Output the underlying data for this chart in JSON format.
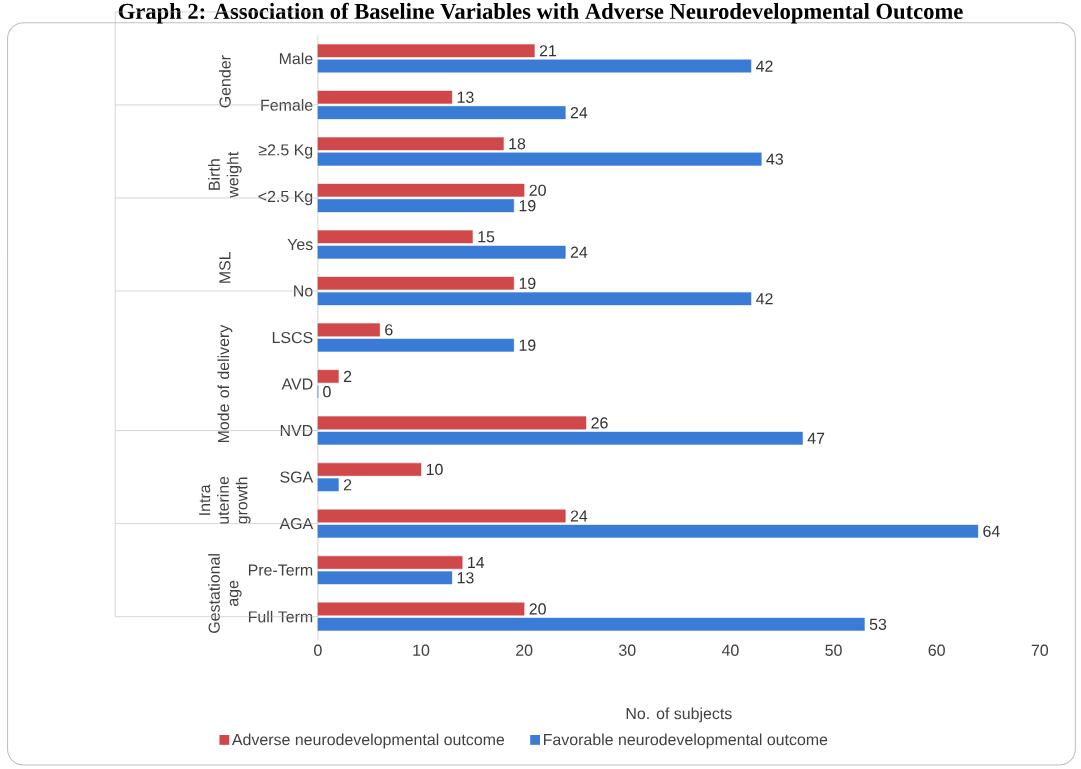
{
  "chart_data": {
    "type": "bar",
    "orientation": "horizontal",
    "title": "Graph 2: Association of Baseline Variables with Adverse Neurodevelopmental Outcome",
    "categories": [
      "Male",
      "Female",
      "≥2.5 Kg",
      "<2.5 Kg",
      "Yes",
      "No",
      "LSCS",
      "AVD",
      "NVD",
      "SGA",
      "AGA",
      "Pre-Term",
      "Full Term"
    ],
    "series": [
      {
        "name": "Adverse neurodevelopmental outcome",
        "color": "#d0484a",
        "values": [
          21,
          13,
          18,
          20,
          15,
          19,
          6,
          2,
          26,
          10,
          24,
          14,
          20
        ]
      },
      {
        "name": "Favorable neurodevelopmental outcome",
        "color": "#3a7bd5",
        "values": [
          42,
          24,
          43,
          19,
          24,
          42,
          19,
          0,
          47,
          2,
          64,
          13,
          53
        ]
      }
    ],
    "xlabel": "No. of subjects",
    "xlim": [
      0,
      70
    ],
    "xticks": [
      0,
      10,
      20,
      30,
      40,
      50,
      60,
      70
    ],
    "data_labels": true,
    "legend": "bottom",
    "annotations": [
      "Gender",
      "Birth weight",
      "MSL",
      "Mode of delivery",
      "Intra uterine growth",
      "Gestational age"
    ]
  }
}
